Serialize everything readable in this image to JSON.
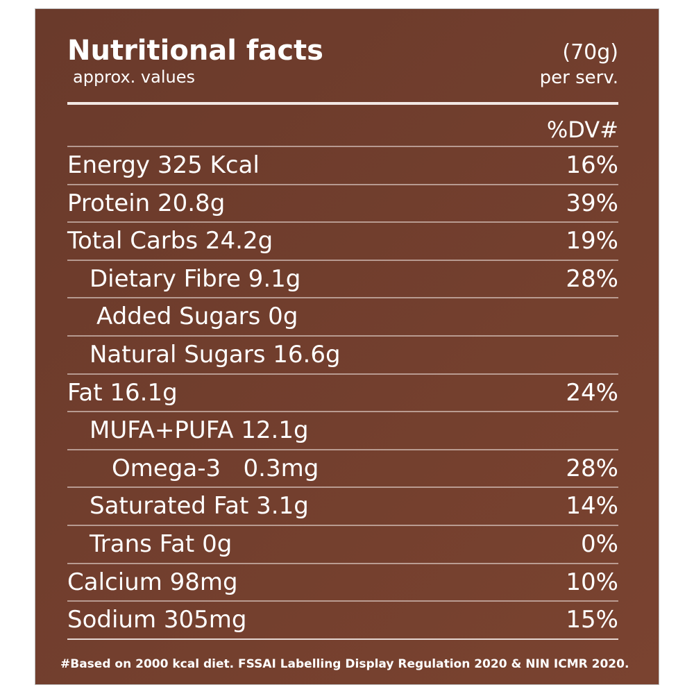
{
  "header": {
    "title": "Nutritional facts",
    "subtitle": "approx. values",
    "serving": "(70g)",
    "serving_note": "per serv."
  },
  "table": {
    "dv_header": "%DV#",
    "rows": [
      {
        "label": "Energy 325 Kcal",
        "dv": "16%"
      },
      {
        "label": "Protein 20.8g",
        "dv": "39%"
      },
      {
        "label": "Total Carbs 24.2g",
        "dv": "19%"
      },
      {
        "label": "Dietary Fibre 9.1g",
        "dv": "28%"
      },
      {
        "label": "Added Sugars 0g"
      },
      {
        "label": "Natural Sugars 16.6g"
      },
      {
        "label": "Fat 16.1g",
        "dv": "24%"
      },
      {
        "label": "MUFA+PUFA 12.1g"
      },
      {
        "label": "Omega-3   0.3mg",
        "dv": "28%"
      },
      {
        "label": "Saturated Fat 3.1g",
        "dv": "14%"
      },
      {
        "label": "Trans Fat 0g",
        "dv": "0%"
      },
      {
        "label": "Calcium 98mg",
        "dv": "10%"
      },
      {
        "label": "Sodium 305mg",
        "dv": "15%"
      }
    ]
  },
  "footnote": "#Based on 2000 kcal diet. FSSAI Labelling Display Regulation 2020 & NIN ICMR 2020."
}
